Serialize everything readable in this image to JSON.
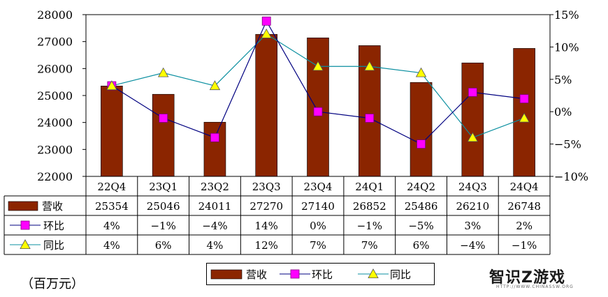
{
  "unit_label": "（百万元）",
  "watermark": {
    "text": "智识Z游戏",
    "sub": "HTTP://WWW.CHINASSW.ORG"
  },
  "colors": {
    "bar": "#8B2500",
    "qoq": "#FF00FF",
    "yoy": "#FFFF00",
    "qoq_line": "#000080",
    "yoy_line": "#0B8FA0"
  },
  "chart_data": {
    "type": "bar",
    "categories": [
      "22Q4",
      "23Q1",
      "23Q2",
      "23Q3",
      "23Q4",
      "24Q1",
      "24Q2",
      "24Q3",
      "24Q4"
    ],
    "series": [
      {
        "name": "营收",
        "type": "bar",
        "axis": "left",
        "values": [
          25354,
          25046,
          24011,
          27270,
          27140,
          26852,
          25486,
          26210,
          26748
        ]
      },
      {
        "name": "环比",
        "type": "line",
        "axis": "right",
        "values": [
          4,
          -1,
          -4,
          14,
          0,
          -1,
          -5,
          3,
          2
        ]
      },
      {
        "name": "同比",
        "type": "line",
        "axis": "right",
        "values": [
          4,
          6,
          4,
          12,
          7,
          7,
          6,
          -4,
          -1
        ]
      }
    ],
    "table_values": {
      "营收": [
        "25354",
        "25046",
        "24011",
        "27270",
        "27140",
        "26852",
        "25486",
        "26210",
        "26748"
      ],
      "环比": [
        "4%",
        "−1%",
        "−4%",
        "14%",
        "0%",
        "−1%",
        "−5%",
        "3%",
        "2%"
      ],
      "同比": [
        "4%",
        "6%",
        "4%",
        "12%",
        "7%",
        "7%",
        "6%",
        "−4%",
        "−1%"
      ]
    },
    "y_left": {
      "min": 22000,
      "max": 28000,
      "ticks": [
        "22000",
        "23000",
        "24000",
        "25000",
        "26000",
        "27000",
        "28000"
      ]
    },
    "y_right": {
      "min": -10,
      "max": 15,
      "ticks": [
        "−10%",
        "−5%",
        "0%",
        "5%",
        "10%",
        "15%"
      ]
    },
    "legend": {
      "position": "bottom",
      "labels": [
        "营收",
        "环比",
        "同比"
      ]
    },
    "grid": false
  }
}
